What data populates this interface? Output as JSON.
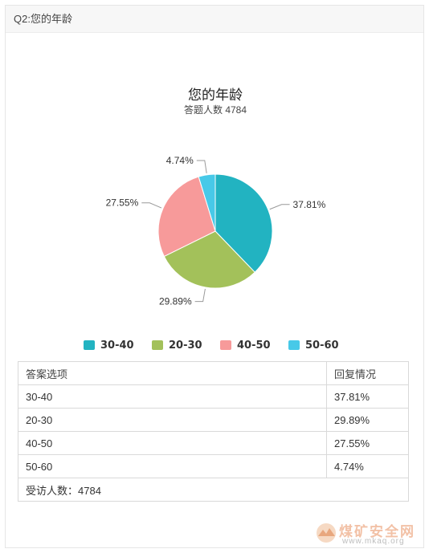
{
  "question": {
    "title": "Q2:您的年龄"
  },
  "chart_data": {
    "type": "pie",
    "title": "您的年龄",
    "subtitle": "答题人数 4784",
    "categories": [
      "30-40",
      "20-30",
      "40-50",
      "50-60"
    ],
    "values": [
      37.81,
      29.89,
      27.55,
      4.74
    ],
    "value_labels": [
      "37.81%",
      "29.89%",
      "27.55%",
      "4.74%"
    ],
    "colors": [
      "#22b3c1",
      "#a3c15a",
      "#f79a9a",
      "#47c9e8"
    ],
    "legend_position": "bottom"
  },
  "table": {
    "headers": [
      "答案选项",
      "回复情况"
    ],
    "rows": [
      [
        "30-40",
        "37.81%"
      ],
      [
        "20-30",
        "29.89%"
      ],
      [
        "40-50",
        "27.55%"
      ],
      [
        "50-60",
        "4.74%"
      ]
    ],
    "footer": "受访人数：4784"
  },
  "watermark": {
    "text": "煤矿安全网",
    "url": "www.mkaq.org"
  }
}
